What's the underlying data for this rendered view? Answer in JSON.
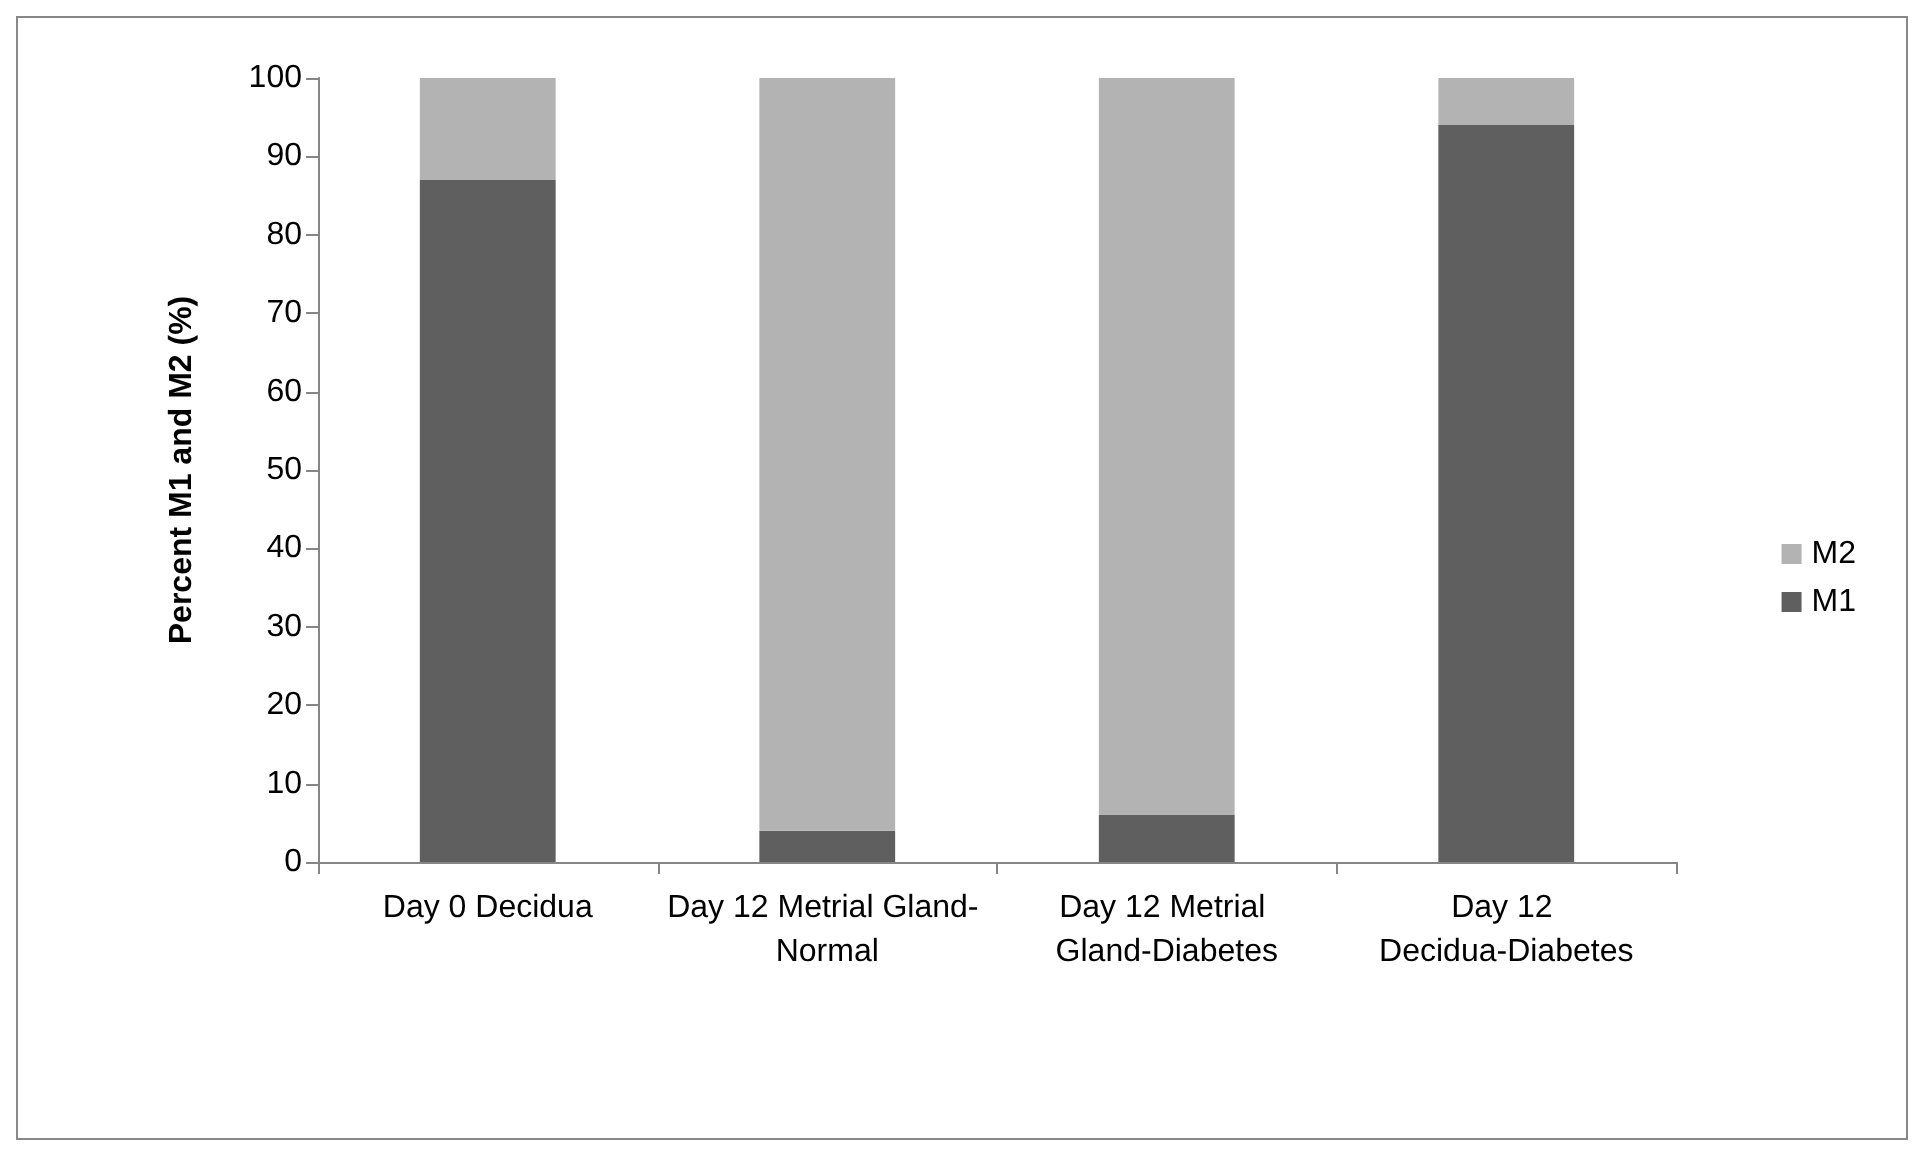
{
  "chart_data": {
    "type": "bar",
    "stacked": true,
    "ylabel": "Percent M1 and M2 (%)",
    "categories": [
      "Day 0 Decidua",
      "Day 12 Metrial Gland- Normal",
      "Day 12 Metrial Gland-Diabetes",
      "Day 12 Decidua-Diabetes"
    ],
    "series": [
      {
        "name": "M1",
        "color": "#5f5f5f",
        "values": [
          87,
          4,
          6,
          94
        ]
      },
      {
        "name": "M2",
        "color": "#b3b3b3",
        "values": [
          13,
          96,
          94,
          6
        ]
      }
    ],
    "ylim": [
      0,
      100
    ],
    "yticks": [
      0,
      10,
      20,
      30,
      40,
      50,
      60,
      70,
      80,
      90,
      100
    ],
    "grid": false,
    "legend": "right"
  }
}
